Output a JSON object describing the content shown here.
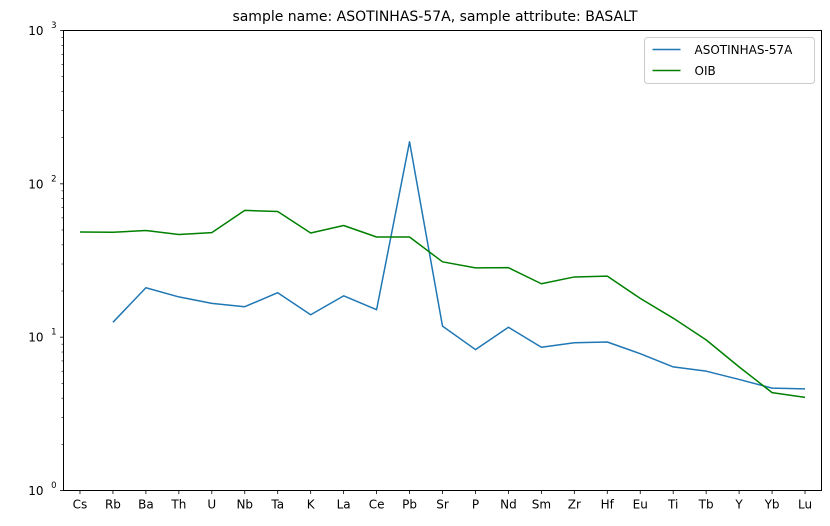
{
  "chart_data": {
    "type": "line",
    "title": "sample name: ASOTINHAS-57A, sample attribute: BASALT",
    "xlabel": "",
    "ylabel": "",
    "yscale": "log",
    "ylim": [
      1,
      1000
    ],
    "y_ticks": [
      {
        "value": 1,
        "base": "10",
        "exp": "0"
      },
      {
        "value": 10,
        "base": "10",
        "exp": "1"
      },
      {
        "value": 100,
        "base": "10",
        "exp": "2"
      },
      {
        "value": 1000,
        "base": "10",
        "exp": "3"
      }
    ],
    "grid": false,
    "legend_position": "top-right",
    "categories": [
      "Cs",
      "Rb",
      "Ba",
      "Th",
      "U",
      "Nb",
      "Ta",
      "K",
      "La",
      "Ce",
      "Pb",
      "Sr",
      "P",
      "Nd",
      "Sm",
      "Zr",
      "Hf",
      "Eu",
      "Ti",
      "Tb",
      "Y",
      "Yb",
      "Lu"
    ],
    "series": [
      {
        "name": "ASOTINHAS-57A",
        "color": "#1f77b4",
        "values": [
          null,
          12.5,
          21,
          18.3,
          16.6,
          15.8,
          19.5,
          14,
          18.6,
          15.1,
          188,
          11.8,
          8.3,
          11.6,
          8.6,
          9.2,
          9.3,
          7.8,
          6.4,
          6,
          5.3,
          4.65,
          4.6
        ]
      },
      {
        "name": "OIB",
        "color": "#008000",
        "values": [
          48.5,
          48.3,
          49.6,
          46.7,
          48.1,
          67.1,
          66,
          47.8,
          53.5,
          45,
          45,
          31,
          28.3,
          28.4,
          22.3,
          24.7,
          25,
          17.9,
          13.3,
          9.6,
          6.4,
          4.35,
          4.05
        ]
      }
    ]
  }
}
